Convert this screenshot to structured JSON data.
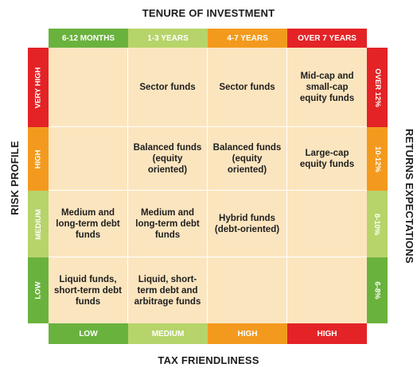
{
  "top_title": "TENURE OF INVESTMENT",
  "bottom_title": "TAX FRIENDLINESS",
  "left_title": "RISK PROFILE",
  "right_title": "RETURNS EXPECTATIONS",
  "colors": {
    "green": "#6ab23e",
    "light_green": "#b6d46a",
    "orange": "#f39a1e",
    "red": "#e32326",
    "grid": "#fbe5bf"
  },
  "tenure_headers": [
    "6-12 MONTHS",
    "1-3 YEARS",
    "4-7 YEARS",
    "OVER 7 YEARS"
  ],
  "tax_labels": [
    "LOW",
    "MEDIUM",
    "HIGH",
    "HIGH"
  ],
  "risk_labels": [
    "VERY HIGH",
    "HIGH",
    "MEDIUM",
    "LOW"
  ],
  "return_labels": [
    "OVER 12%",
    "10-12%",
    "8-10%",
    "6-8%"
  ],
  "cells": [
    [
      "",
      "Sector funds",
      "Sector funds",
      "Mid-cap and small-cap equity funds"
    ],
    [
      "",
      "Balanced funds (equity oriented)",
      "Balanced funds (equity oriented)",
      "Large-cap equity funds"
    ],
    [
      "Medium and long-term debt funds",
      "Medium and long-term debt funds",
      "Hybrid funds (debt-oriented)",
      ""
    ],
    [
      "Liquid funds, short-term debt funds",
      "Liquid, short-term debt and arbitrage funds",
      "",
      ""
    ]
  ]
}
